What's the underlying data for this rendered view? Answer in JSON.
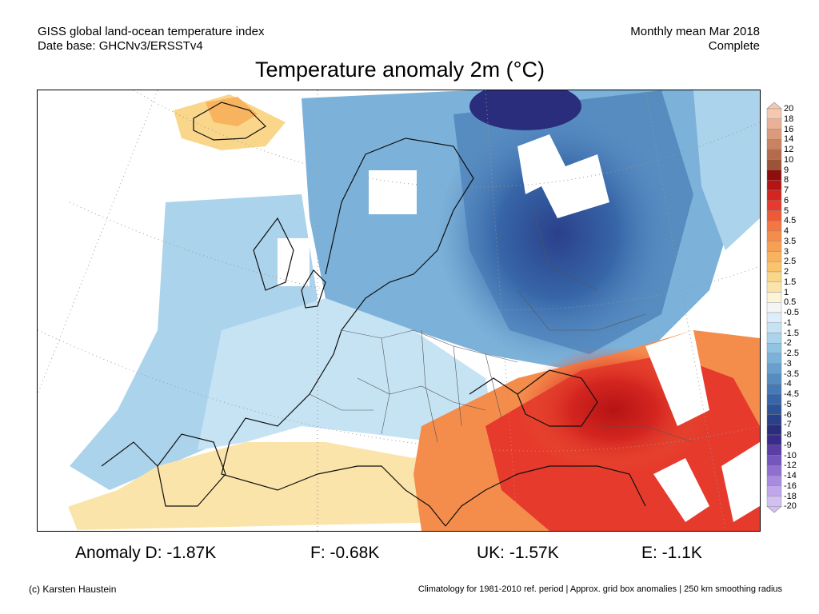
{
  "header": {
    "line1_left": "GISS global land-ocean temperature index",
    "line2_left": "Date base: GHCNv3/ERSSTv4",
    "line1_right": "Monthly mean Mar 2018",
    "line2_right": "Complete"
  },
  "title": "Temperature anomaly 2m (°C)",
  "stats": [
    {
      "label": "Anomaly D: -1.87K"
    },
    {
      "label": "F: -0.68K"
    },
    {
      "label": "UK: -1.57K"
    },
    {
      "label": "E: -1.1K"
    }
  ],
  "colorbar": {
    "labels": [
      "20",
      "18",
      "16",
      "14",
      "12",
      "10",
      "9",
      "8",
      "7",
      "6",
      "5",
      "4.5",
      "4",
      "3.5",
      "3",
      "2.5",
      "2",
      "1.5",
      "1",
      "0.5",
      "-0.5",
      "-1",
      "-1.5",
      "-2",
      "-2.5",
      "-3",
      "-3.5",
      "-4",
      "-4.5",
      "-5",
      "-6",
      "-7",
      "-8",
      "-9",
      "-10",
      "-12",
      "-14",
      "-16",
      "-18",
      "-20"
    ],
    "colors": [
      "#f5c8b0",
      "#eab196",
      "#dc9a7c",
      "#c98262",
      "#b46a4c",
      "#9c5437",
      "#8e0d0d",
      "#b51414",
      "#d42520",
      "#e53a2c",
      "#ee5a36",
      "#f27742",
      "#f48d4c",
      "#f6a055",
      "#f8b35e",
      "#f9c46c",
      "#fad68a",
      "#fbe4aa",
      "#fdf3d6",
      "#f5f5f5",
      "#ddeefa",
      "#c6e3f4",
      "#abd3ec",
      "#91c3e3",
      "#7cb2d9",
      "#689fcd",
      "#578cc1",
      "#4679b5",
      "#3766a8",
      "#2d5399",
      "#2a408a",
      "#2a2d7b",
      "#3a2a8a",
      "#5a3ea6",
      "#7556bd",
      "#8f70cf",
      "#a88bde",
      "#c0a6ea",
      "#d3c0f2"
    ],
    "colors_meaning": "warm to cold palette"
  },
  "footer": {
    "left": "(c) Karsten Haustein",
    "right": "Climatology for 1981-2010 ref. period | Approx. grid box anomalies | 250 km smoothing radius"
  }
}
